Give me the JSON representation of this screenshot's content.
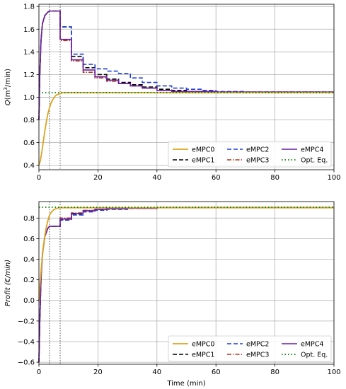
{
  "chart_data": [
    {
      "type": "line",
      "ylabel": "Q(m³/min)",
      "ylabel_parts": {
        "main": "Q",
        "unit_pre": "(m",
        "unit_sup": "3",
        "unit_post": "/min)"
      },
      "xlabel": "",
      "xlim": [
        0,
        100
      ],
      "ylim": [
        0.36,
        1.82
      ],
      "xticks": [
        "0",
        "20",
        "40",
        "60",
        "80",
        "100"
      ],
      "yticks": [
        "0.4",
        "0.6",
        "0.8",
        "1.0",
        "1.2",
        "1.4",
        "1.6",
        "1.8"
      ],
      "grid": true,
      "legend_placement": "lower-right",
      "vlines": [
        3.6,
        7.2
      ],
      "series": [
        {
          "name": "eMPC0",
          "color": "#DAA520",
          "style": "solid",
          "width": 1.8,
          "points": [
            [
              0,
              0.4
            ],
            [
              0.5,
              0.44
            ],
            [
              1,
              0.52
            ],
            [
              1.5,
              0.61
            ],
            [
              2,
              0.7
            ],
            [
              2.5,
              0.78
            ],
            [
              3,
              0.85
            ],
            [
              3.5,
              0.9
            ],
            [
              4,
              0.94
            ],
            [
              4.5,
              0.97
            ],
            [
              5,
              0.99
            ],
            [
              5.5,
              1.01
            ],
            [
              6,
              1.02
            ],
            [
              7,
              1.03
            ],
            [
              8,
              1.04
            ],
            [
              10,
              1.04
            ],
            [
              100,
              1.04
            ]
          ]
        },
        {
          "name": "eMPC1",
          "color": "#000000",
          "style": "dash",
          "width": 1.6,
          "points": [
            [
              0,
              0.8
            ],
            [
              0.3,
              1.2
            ],
            [
              0.7,
              1.5
            ],
            [
              1.2,
              1.65
            ],
            [
              2,
              1.72
            ],
            [
              3,
              1.75
            ],
            [
              3.6,
              1.76
            ],
            [
              7.2,
              1.76
            ],
            [
              7.2,
              1.62
            ],
            [
              11,
              1.62
            ],
            [
              11,
              1.36
            ],
            [
              15,
              1.36
            ],
            [
              15,
              1.26
            ],
            [
              19,
              1.26
            ],
            [
              19,
              1.2
            ],
            [
              23,
              1.2
            ],
            [
              23,
              1.16
            ],
            [
              27,
              1.16
            ],
            [
              27,
              1.13
            ],
            [
              31,
              1.13
            ],
            [
              31,
              1.11
            ],
            [
              35,
              1.11
            ],
            [
              35,
              1.09
            ],
            [
              40,
              1.09
            ],
            [
              40,
              1.07
            ],
            [
              45,
              1.07
            ],
            [
              45,
              1.06
            ],
            [
              50,
              1.06
            ],
            [
              50,
              1.05
            ],
            [
              60,
              1.05
            ],
            [
              60,
              1.045
            ],
            [
              100,
              1.045
            ]
          ]
        },
        {
          "name": "eMPC2",
          "color": "#1f3fd0",
          "style": "dash",
          "width": 1.6,
          "points": [
            [
              0,
              0.8
            ],
            [
              0.3,
              1.2
            ],
            [
              0.7,
              1.5
            ],
            [
              1.2,
              1.65
            ],
            [
              2,
              1.72
            ],
            [
              3,
              1.75
            ],
            [
              3.6,
              1.76
            ],
            [
              7.2,
              1.76
            ],
            [
              7.2,
              1.62
            ],
            [
              11,
              1.62
            ],
            [
              11,
              1.38
            ],
            [
              15,
              1.38
            ],
            [
              15,
              1.29
            ],
            [
              19,
              1.29
            ],
            [
              19,
              1.25
            ],
            [
              23,
              1.25
            ],
            [
              23,
              1.23
            ],
            [
              27,
              1.23
            ],
            [
              27,
              1.21
            ],
            [
              31,
              1.21
            ],
            [
              31,
              1.17
            ],
            [
              35,
              1.17
            ],
            [
              35,
              1.13
            ],
            [
              40,
              1.13
            ],
            [
              40,
              1.1
            ],
            [
              45,
              1.1
            ],
            [
              45,
              1.08
            ],
            [
              50,
              1.08
            ],
            [
              50,
              1.07
            ],
            [
              55,
              1.07
            ],
            [
              55,
              1.06
            ],
            [
              60,
              1.06
            ],
            [
              60,
              1.05
            ],
            [
              70,
              1.05
            ],
            [
              70,
              1.045
            ],
            [
              100,
              1.045
            ]
          ]
        },
        {
          "name": "eMPC3",
          "color": "#b03a1e",
          "style": "dashdot",
          "width": 1.6,
          "points": [
            [
              0,
              0.8
            ],
            [
              0.3,
              1.2
            ],
            [
              0.7,
              1.5
            ],
            [
              1.2,
              1.65
            ],
            [
              2,
              1.72
            ],
            [
              3,
              1.75
            ],
            [
              3.6,
              1.76
            ],
            [
              7.2,
              1.76
            ],
            [
              7.2,
              1.5
            ],
            [
              11,
              1.5
            ],
            [
              11,
              1.32
            ],
            [
              15,
              1.32
            ],
            [
              15,
              1.22
            ],
            [
              19,
              1.22
            ],
            [
              19,
              1.17
            ],
            [
              23,
              1.17
            ],
            [
              23,
              1.14
            ],
            [
              27,
              1.14
            ],
            [
              27,
              1.12
            ],
            [
              31,
              1.12
            ],
            [
              31,
              1.1
            ],
            [
              35,
              1.1
            ],
            [
              35,
              1.08
            ],
            [
              40,
              1.08
            ],
            [
              40,
              1.06
            ],
            [
              45,
              1.06
            ],
            [
              45,
              1.05
            ],
            [
              60,
              1.05
            ],
            [
              60,
              1.045
            ],
            [
              100,
              1.045
            ]
          ]
        },
        {
          "name": "eMPC4",
          "color": "#6a1fa0",
          "style": "solid",
          "width": 1.6,
          "points": [
            [
              0,
              0.8
            ],
            [
              0.3,
              1.2
            ],
            [
              0.7,
              1.5
            ],
            [
              1.2,
              1.65
            ],
            [
              2,
              1.72
            ],
            [
              3,
              1.75
            ],
            [
              3.6,
              1.76
            ],
            [
              7.2,
              1.76
            ],
            [
              7.2,
              1.51
            ],
            [
              11,
              1.51
            ],
            [
              11,
              1.33
            ],
            [
              15,
              1.33
            ],
            [
              15,
              1.24
            ],
            [
              19,
              1.24
            ],
            [
              19,
              1.18
            ],
            [
              23,
              1.18
            ],
            [
              23,
              1.15
            ],
            [
              27,
              1.15
            ],
            [
              27,
              1.12
            ],
            [
              31,
              1.12
            ],
            [
              31,
              1.1
            ],
            [
              35,
              1.1
            ],
            [
              35,
              1.08
            ],
            [
              40,
              1.08
            ],
            [
              40,
              1.06
            ],
            [
              45,
              1.06
            ],
            [
              45,
              1.05
            ],
            [
              60,
              1.05
            ],
            [
              60,
              1.045
            ],
            [
              100,
              1.045
            ]
          ]
        },
        {
          "name": "Opt. Eq.",
          "color": "#008000",
          "style": "dot",
          "width": 1.8,
          "points": [
            [
              0,
              1.04
            ],
            [
              100,
              1.04
            ]
          ]
        }
      ]
    },
    {
      "type": "line",
      "ylabel": "Profit (€/min)",
      "xlabel": "Time (min)",
      "xlim": [
        0,
        100
      ],
      "ylim": [
        -0.62,
        0.96
      ],
      "xticks": [
        "0",
        "20",
        "40",
        "60",
        "80",
        "100"
      ],
      "yticks": [
        "−0.6",
        "−0.4",
        "−0.2",
        "0.0",
        "0.2",
        "0.4",
        "0.6",
        "0.8"
      ],
      "grid": true,
      "legend_placement": "lower-right",
      "vlines": [
        3.6,
        7.2
      ],
      "series": [
        {
          "name": "eMPC0",
          "color": "#DAA520",
          "style": "solid",
          "width": 1.8,
          "points": [
            [
              0,
              0.0
            ],
            [
              0.5,
              0.2
            ],
            [
              1,
              0.38
            ],
            [
              1.5,
              0.52
            ],
            [
              2,
              0.63
            ],
            [
              2.5,
              0.71
            ],
            [
              3,
              0.77
            ],
            [
              3.5,
              0.82
            ],
            [
              4,
              0.85
            ],
            [
              5,
              0.88
            ],
            [
              6,
              0.895
            ],
            [
              7,
              0.9
            ],
            [
              100,
              0.9
            ]
          ]
        },
        {
          "name": "eMPC1",
          "color": "#000000",
          "style": "dash",
          "width": 1.6,
          "points": [
            [
              0,
              -0.6
            ],
            [
              0.3,
              -0.2
            ],
            [
              0.7,
              0.2
            ],
            [
              1.2,
              0.45
            ],
            [
              2,
              0.62
            ],
            [
              3,
              0.7
            ],
            [
              3.6,
              0.72
            ],
            [
              7.2,
              0.72
            ],
            [
              7.2,
              0.78
            ],
            [
              11,
              0.78
            ],
            [
              11,
              0.84
            ],
            [
              15,
              0.84
            ],
            [
              15,
              0.87
            ],
            [
              19,
              0.87
            ],
            [
              19,
              0.885
            ],
            [
              23,
              0.885
            ],
            [
              23,
              0.89
            ],
            [
              30,
              0.89
            ],
            [
              30,
              0.895
            ],
            [
              40,
              0.895
            ],
            [
              40,
              0.9
            ],
            [
              100,
              0.9
            ]
          ]
        },
        {
          "name": "eMPC2",
          "color": "#1f3fd0",
          "style": "dash",
          "width": 1.6,
          "points": [
            [
              0,
              -0.6
            ],
            [
              0.3,
              -0.2
            ],
            [
              0.7,
              0.2
            ],
            [
              1.2,
              0.45
            ],
            [
              2,
              0.62
            ],
            [
              3,
              0.7
            ],
            [
              3.6,
              0.72
            ],
            [
              7.2,
              0.72
            ],
            [
              7.2,
              0.78
            ],
            [
              11,
              0.78
            ],
            [
              11,
              0.83
            ],
            [
              15,
              0.83
            ],
            [
              15,
              0.86
            ],
            [
              19,
              0.86
            ],
            [
              19,
              0.875
            ],
            [
              23,
              0.875
            ],
            [
              23,
              0.885
            ],
            [
              30,
              0.885
            ],
            [
              30,
              0.895
            ],
            [
              40,
              0.895
            ],
            [
              40,
              0.9
            ],
            [
              100,
              0.9
            ]
          ]
        },
        {
          "name": "eMPC3",
          "color": "#b03a1e",
          "style": "dashdot",
          "width": 1.6,
          "points": [
            [
              0,
              -0.6
            ],
            [
              0.3,
              -0.2
            ],
            [
              0.7,
              0.2
            ],
            [
              1.2,
              0.45
            ],
            [
              2,
              0.62
            ],
            [
              3,
              0.7
            ],
            [
              3.6,
              0.72
            ],
            [
              7.2,
              0.72
            ],
            [
              7.2,
              0.8
            ],
            [
              11,
              0.8
            ],
            [
              11,
              0.85
            ],
            [
              15,
              0.85
            ],
            [
              15,
              0.875
            ],
            [
              19,
              0.875
            ],
            [
              19,
              0.885
            ],
            [
              23,
              0.885
            ],
            [
              23,
              0.89
            ],
            [
              30,
              0.89
            ],
            [
              30,
              0.895
            ],
            [
              40,
              0.895
            ],
            [
              40,
              0.9
            ],
            [
              100,
              0.9
            ]
          ]
        },
        {
          "name": "eMPC4",
          "color": "#6a1fa0",
          "style": "solid",
          "width": 1.6,
          "points": [
            [
              0,
              -0.6
            ],
            [
              0.3,
              -0.2
            ],
            [
              0.7,
              0.2
            ],
            [
              1.2,
              0.45
            ],
            [
              2,
              0.62
            ],
            [
              3,
              0.7
            ],
            [
              3.6,
              0.72
            ],
            [
              7.2,
              0.72
            ],
            [
              7.2,
              0.79
            ],
            [
              11,
              0.79
            ],
            [
              11,
              0.845
            ],
            [
              15,
              0.845
            ],
            [
              15,
              0.87
            ],
            [
              19,
              0.87
            ],
            [
              19,
              0.885
            ],
            [
              23,
              0.885
            ],
            [
              23,
              0.89
            ],
            [
              30,
              0.89
            ],
            [
              30,
              0.895
            ],
            [
              40,
              0.895
            ],
            [
              40,
              0.9
            ],
            [
              100,
              0.9
            ]
          ]
        },
        {
          "name": "Opt. Eq.",
          "color": "#008000",
          "style": "dot",
          "width": 1.8,
          "points": [
            [
              0,
              0.905
            ],
            [
              100,
              0.905
            ]
          ]
        }
      ]
    }
  ]
}
